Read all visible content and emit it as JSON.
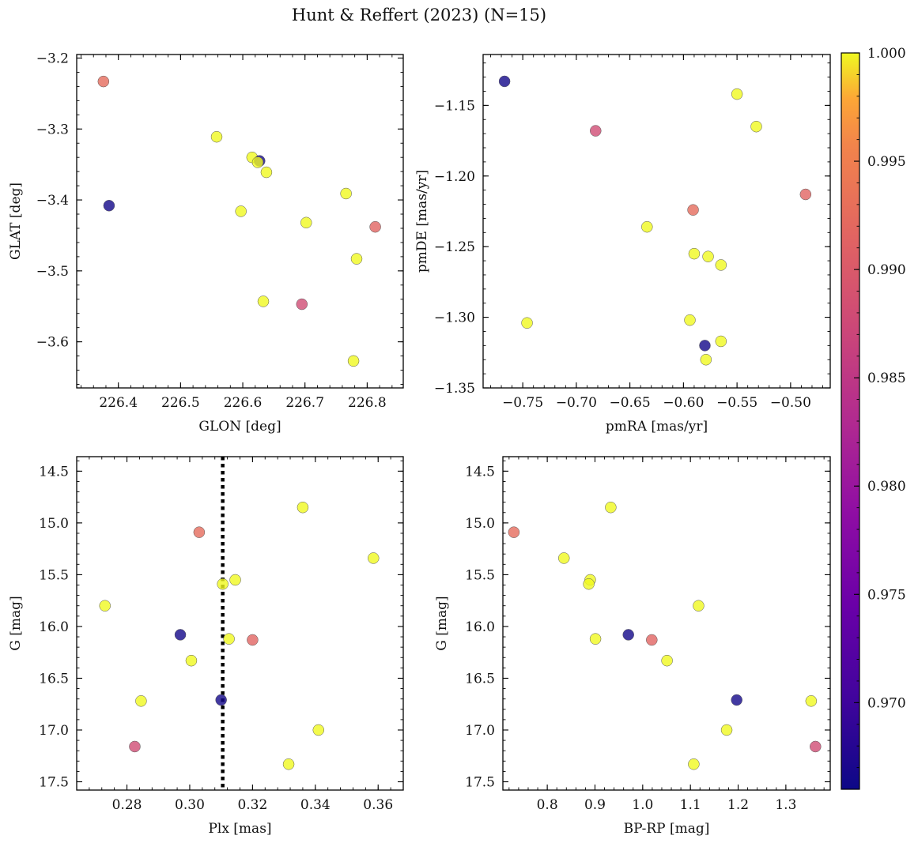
{
  "figure": {
    "title": "Hunt & Reffert (2023) (N=15)"
  },
  "colorbar": {
    "min": 0.966,
    "max": 1.0,
    "ticks": [
      "0.970",
      "0.975",
      "0.980",
      "0.985",
      "0.990",
      "0.995",
      "1.000"
    ],
    "tick_values": [
      0.97,
      0.975,
      0.98,
      0.985,
      0.99,
      0.995,
      1.0
    ],
    "colormap": "plasma"
  },
  "chart_data": [
    {
      "id": "p1",
      "type": "scatter",
      "title": "",
      "xlabel": "GLON [deg]",
      "ylabel": "GLAT [deg]",
      "xlim": [
        226.333,
        226.858
      ],
      "ylim": [
        -3.665,
        -3.195
      ],
      "y_inverted": false,
      "xticks": [
        226.4,
        226.5,
        226.6,
        226.7,
        226.8
      ],
      "xtick_labels": [
        "226.4",
        "226.5",
        "226.6",
        "226.7",
        "226.8"
      ],
      "yticks": [
        -3.2,
        -3.3,
        -3.4,
        -3.5,
        -3.6
      ],
      "ytick_labels": [
        "−3.2",
        "−3.3",
        "−3.4",
        "−3.5",
        "−3.6"
      ],
      "x": [
        226.376,
        226.385,
        226.558,
        226.615,
        226.627,
        226.624,
        226.638,
        226.597,
        226.702,
        226.766,
        226.813,
        226.783,
        226.633,
        226.695,
        226.778
      ],
      "y": [
        -3.233,
        -3.408,
        -3.311,
        -3.34,
        -3.345,
        -3.347,
        -3.361,
        -3.416,
        -3.432,
        -3.391,
        -3.438,
        -3.483,
        -3.543,
        -3.547,
        -3.627
      ],
      "c": [
        0.9925,
        0.9665,
        1.0,
        1.0,
        0.9665,
        1.0,
        1.0,
        1.0,
        1.0,
        1.0,
        0.9915,
        1.0,
        1.0,
        0.988,
        1.0
      ]
    },
    {
      "id": "p2",
      "type": "scatter",
      "title": "",
      "xlabel": "pmRA [mas/yr]",
      "ylabel": "pmDE [mas/yr]",
      "xlim": [
        -0.787,
        -0.463
      ],
      "ylim": [
        -1.35,
        -1.114
      ],
      "y_inverted": false,
      "xticks": [
        -0.75,
        -0.7,
        -0.65,
        -0.6,
        -0.55,
        -0.5
      ],
      "xtick_labels": [
        "−0.75",
        "−0.70",
        "−0.65",
        "−0.60",
        "−0.55",
        "−0.50"
      ],
      "yticks": [
        -1.15,
        -1.2,
        -1.25,
        -1.3,
        -1.35
      ],
      "ytick_labels": [
        "−1.15",
        "−1.20",
        "−1.25",
        "−1.30",
        "−1.35"
      ],
      "x": [
        -0.767,
        -0.682,
        -0.55,
        -0.532,
        -0.486,
        -0.591,
        -0.634,
        -0.59,
        -0.577,
        -0.565,
        -0.594,
        -0.746,
        -0.58,
        -0.565,
        -0.579
      ],
      "y": [
        -1.133,
        -1.168,
        -1.142,
        -1.165,
        -1.213,
        -1.224,
        -1.236,
        -1.255,
        -1.257,
        -1.263,
        -1.302,
        -1.304,
        -1.32,
        -1.317,
        -1.33
      ],
      "c": [
        0.9665,
        0.988,
        1.0,
        1.0,
        0.9915,
        0.9925,
        1.0,
        1.0,
        1.0,
        1.0,
        1.0,
        1.0,
        0.9665,
        1.0,
        1.0
      ]
    },
    {
      "id": "p3",
      "type": "scatter",
      "title": "",
      "xlabel": "Plx [mas]",
      "ylabel": "G [mag]",
      "xlim": [
        0.264,
        0.368
      ],
      "ylim": [
        17.58,
        14.36
      ],
      "y_inverted": true,
      "xticks": [
        0.28,
        0.3,
        0.32,
        0.34,
        0.36
      ],
      "xtick_labels": [
        "0.28",
        "0.30",
        "0.32",
        "0.34",
        "0.36"
      ],
      "yticks": [
        14.5,
        15.0,
        15.5,
        16.0,
        16.5,
        17.0,
        17.5
      ],
      "ytick_labels": [
        "14.5",
        "15.0",
        "15.5",
        "16.0",
        "16.5",
        "17.0",
        "17.5"
      ],
      "vline": 0.3105,
      "x": [
        0.336,
        0.303,
        0.3585,
        0.3145,
        0.3105,
        0.273,
        0.297,
        0.3125,
        0.32,
        0.3005,
        0.2845,
        0.31,
        0.341,
        0.2825,
        0.3315
      ],
      "y": [
        14.85,
        15.09,
        15.34,
        15.55,
        15.59,
        15.8,
        16.08,
        16.12,
        16.13,
        16.33,
        16.72,
        16.71,
        17.0,
        17.16,
        17.33
      ],
      "c": [
        1.0,
        0.9925,
        1.0,
        1.0,
        1.0,
        1.0,
        0.9665,
        1.0,
        0.9915,
        1.0,
        1.0,
        0.9665,
        1.0,
        0.988,
        1.0
      ]
    },
    {
      "id": "p4",
      "type": "scatter",
      "title": "",
      "xlabel": "BP-RP [mag]",
      "ylabel": "G [mag]",
      "xlim": [
        0.707,
        1.393
      ],
      "ylim": [
        17.58,
        14.36
      ],
      "y_inverted": true,
      "xticks": [
        0.8,
        0.9,
        1.0,
        1.1,
        1.2,
        1.3
      ],
      "xtick_labels": [
        "0.8",
        "0.9",
        "1.0",
        "1.1",
        "1.2",
        "1.3"
      ],
      "yticks": [
        14.5,
        15.0,
        15.5,
        16.0,
        16.5,
        17.0,
        17.5
      ],
      "ytick_labels": [
        "14.5",
        "15.0",
        "15.5",
        "16.0",
        "16.5",
        "17.0",
        "17.5"
      ],
      "x": [
        0.933,
        0.73,
        0.835,
        0.89,
        0.887,
        1.117,
        0.97,
        0.901,
        1.019,
        1.051,
        1.353,
        1.197,
        1.176,
        1.362,
        1.107
      ],
      "y": [
        14.85,
        15.09,
        15.34,
        15.55,
        15.59,
        15.8,
        16.08,
        16.12,
        16.13,
        16.33,
        16.72,
        16.71,
        17.0,
        17.16,
        17.33
      ],
      "c": [
        1.0,
        0.9925,
        1.0,
        1.0,
        1.0,
        1.0,
        0.9665,
        1.0,
        0.9915,
        1.0,
        1.0,
        0.9665,
        1.0,
        0.988,
        1.0
      ]
    }
  ]
}
